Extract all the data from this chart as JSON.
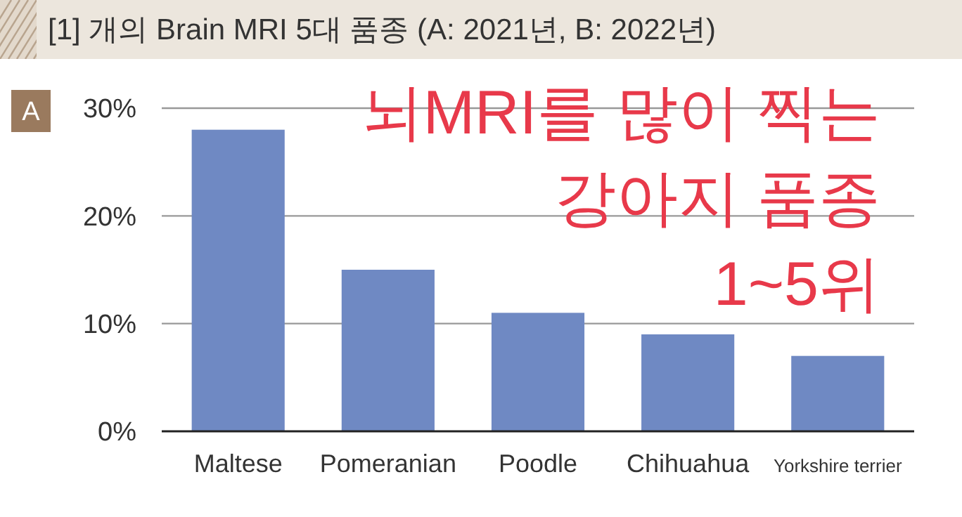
{
  "chart_data": {
    "type": "bar",
    "title": "[1] 개의 Brain MRI 5대 품종 (A: 2021년, B: 2022년)",
    "categories": [
      "Maltese",
      "Pomeranian",
      "Poodle",
      "Chihuahua",
      "Yorkshire terrier"
    ],
    "values": [
      28,
      15,
      11,
      9,
      7
    ],
    "color": "#6f89c3",
    "ylim": [
      0,
      30
    ],
    "yticks": [
      {
        "value": 0,
        "label": "0%"
      },
      {
        "value": 10,
        "label": "10%"
      },
      {
        "value": 20,
        "label": "20%"
      },
      {
        "value": 30,
        "label": "30%"
      }
    ],
    "grid": "y",
    "annotations": [
      "A",
      "뇌MRI를 많이 찍는\n강아지 품종\n1~5위"
    ]
  }
}
